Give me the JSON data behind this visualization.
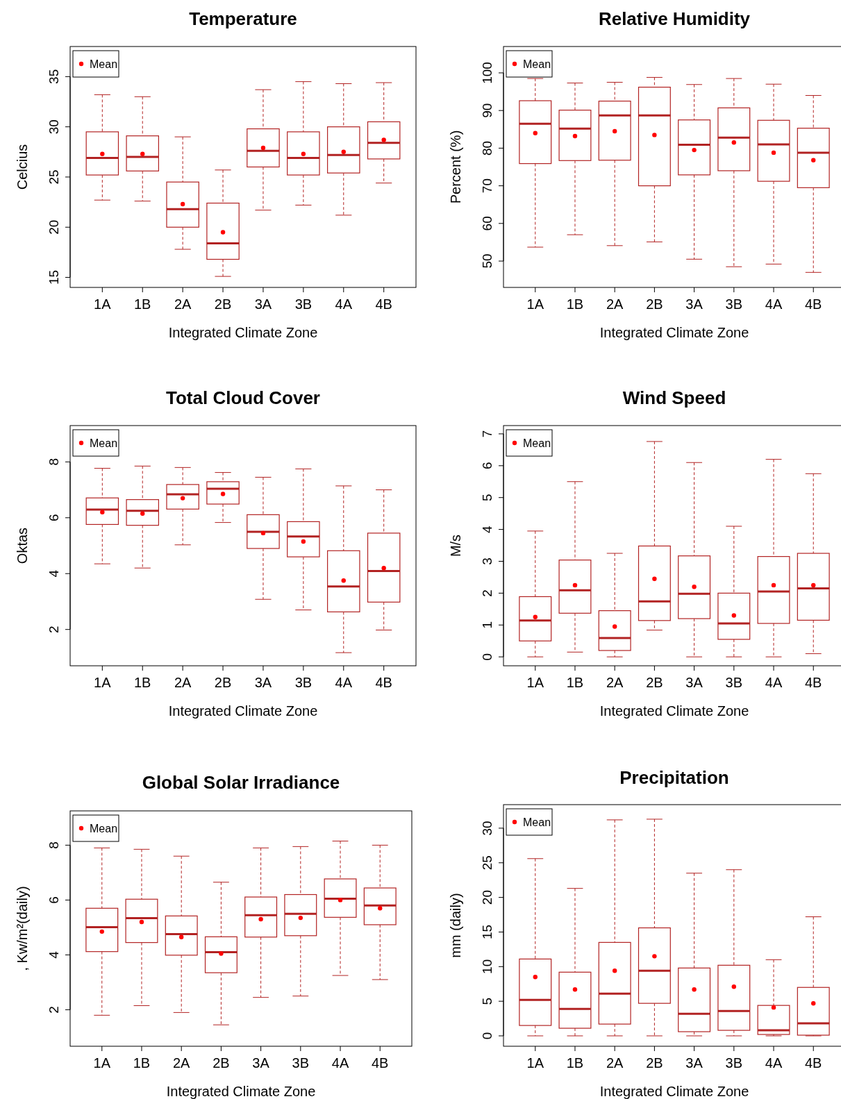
{
  "chart_data": [
    {
      "type": "box",
      "title": "Temperature",
      "xlabel": "Integrated Climate Zone",
      "ylabel": "Celcius",
      "categories": [
        "1A",
        "1B",
        "2A",
        "2B",
        "3A",
        "3B",
        "4A",
        "4B"
      ],
      "ylim": [
        14,
        38
      ],
      "yticks": [
        15,
        20,
        25,
        30,
        35
      ],
      "legend": "top left",
      "marker": "circle",
      "series": [
        {
          "type": "box",
          "color": "#b22222",
          "boxes": [
            {
              "low": 22.7,
              "q1": 25.2,
              "median": 26.9,
              "q3": 29.5,
              "high": 33.2
            },
            {
              "low": 22.6,
              "q1": 25.6,
              "median": 27.0,
              "q3": 29.1,
              "high": 33.0
            },
            {
              "low": 17.8,
              "q1": 20.0,
              "median": 21.8,
              "q3": 24.5,
              "high": 29.0
            },
            {
              "low": 15.1,
              "q1": 16.8,
              "median": 18.4,
              "q3": 22.4,
              "high": 25.7
            },
            {
              "low": 21.7,
              "q1": 26.0,
              "median": 27.6,
              "q3": 29.8,
              "high": 33.7
            },
            {
              "low": 22.2,
              "q1": 25.2,
              "median": 26.9,
              "q3": 29.5,
              "high": 34.5
            },
            {
              "low": 21.2,
              "q1": 25.4,
              "median": 27.2,
              "q3": 30.0,
              "high": 34.3
            },
            {
              "low": 24.4,
              "q1": 26.8,
              "median": 28.4,
              "q3": 30.5,
              "high": 34.4
            }
          ]
        },
        {
          "type": "scatter",
          "name": "Mean",
          "color": "#ff0000",
          "x": [
            "1A",
            "1B",
            "2A",
            "2B",
            "3A",
            "3B",
            "4A",
            "4B"
          ],
          "values": [
            27.3,
            27.3,
            22.3,
            19.5,
            27.9,
            27.3,
            27.5,
            28.7
          ]
        }
      ]
    },
    {
      "type": "box",
      "title": "Relative Humidity",
      "xlabel": "Integrated Climate Zone",
      "ylabel": "Percent (%)",
      "categories": [
        "1A",
        "1B",
        "2A",
        "2B",
        "3A",
        "3B",
        "4A",
        "4B"
      ],
      "ylim": [
        43,
        107
      ],
      "yticks": [
        50,
        60,
        70,
        80,
        90,
        100
      ],
      "legend": "top left",
      "marker": "circle",
      "series": [
        {
          "type": "box",
          "color": "#b22222",
          "boxes": [
            {
              "low": 53.7,
              "q1": 75.9,
              "median": 86.5,
              "q3": 92.6,
              "high": 98.5
            },
            {
              "low": 57,
              "q1": 76.7,
              "median": 85.2,
              "q3": 90.1,
              "high": 97.3
            },
            {
              "low": 54.1,
              "q1": 76.8,
              "median": 88.7,
              "q3": 92.5,
              "high": 97.5
            },
            {
              "low": 55.1,
              "q1": 70,
              "median": 88.7,
              "q3": 96.2,
              "high": 98.8
            },
            {
              "low": 50.5,
              "q1": 72.9,
              "median": 80.9,
              "q3": 87.5,
              "high": 96.9
            },
            {
              "low": 48.5,
              "q1": 74,
              "median": 82.8,
              "q3": 90.7,
              "high": 98.5
            },
            {
              "low": 49.2,
              "q1": 71.2,
              "median": 81,
              "q3": 87.4,
              "high": 97
            },
            {
              "low": 47,
              "q1": 69.5,
              "median": 78.8,
              "q3": 85.3,
              "high": 94
            }
          ]
        },
        {
          "type": "scatter",
          "name": "Mean",
          "color": "#ff0000",
          "x": [
            "1A",
            "1B",
            "2A",
            "2B",
            "3A",
            "3B",
            "4A",
            "4B"
          ],
          "values": [
            84,
            83.2,
            84.5,
            83.5,
            79.5,
            81.5,
            78.8,
            76.8
          ]
        }
      ]
    },
    {
      "type": "box",
      "title": "Total Cloud Cover",
      "xlabel": "Integrated Climate Zone",
      "ylabel": "Oktas",
      "categories": [
        "1A",
        "1B",
        "2A",
        "2B",
        "3A",
        "3B",
        "4A",
        "4B"
      ],
      "ylim": [
        0.7,
        9.3
      ],
      "yticks": [
        2,
        4,
        6,
        8
      ],
      "legend": "top left",
      "marker": "circle",
      "series": [
        {
          "type": "box",
          "color": "#b22222",
          "boxes": [
            {
              "low": 4.35,
              "q1": 5.76,
              "median": 6.29,
              "q3": 6.71,
              "high": 7.77
            },
            {
              "low": 4.2,
              "q1": 5.73,
              "median": 6.25,
              "q3": 6.65,
              "high": 7.85
            },
            {
              "low": 5.03,
              "q1": 6.31,
              "median": 6.84,
              "q3": 7.19,
              "high": 7.8
            },
            {
              "low": 5.83,
              "q1": 6.49,
              "median": 7.04,
              "q3": 7.29,
              "high": 7.62
            },
            {
              "low": 3.08,
              "q1": 4.9,
              "median": 5.5,
              "q3": 6.11,
              "high": 7.45
            },
            {
              "low": 2.7,
              "q1": 4.6,
              "median": 5.33,
              "q3": 5.86,
              "high": 7.75
            },
            {
              "low": 1.17,
              "q1": 2.63,
              "median": 3.54,
              "q3": 4.82,
              "high": 7.14
            },
            {
              "low": 1.98,
              "q1": 2.98,
              "median": 4.09,
              "q3": 5.45,
              "high": 7.0
            }
          ]
        },
        {
          "type": "scatter",
          "name": "Mean",
          "color": "#ff0000",
          "x": [
            "1A",
            "1B",
            "2A",
            "2B",
            "3A",
            "3B",
            "4A",
            "4B"
          ],
          "values": [
            6.2,
            6.15,
            6.7,
            6.85,
            5.45,
            5.15,
            3.75,
            4.2
          ]
        }
      ]
    },
    {
      "type": "box",
      "title": "Wind Speed",
      "xlabel": "Integrated Climate Zone",
      "ylabel": "M/s",
      "categories": [
        "1A",
        "1B",
        "2A",
        "2B",
        "3A",
        "3B",
        "4A",
        "4B"
      ],
      "ylim": [
        -0.28,
        7.26
      ],
      "yticks": [
        0,
        1,
        2,
        3,
        4,
        5,
        6,
        7
      ],
      "legend": "top left",
      "marker": "circle",
      "series": [
        {
          "type": "box",
          "color": "#b22222",
          "boxes": [
            {
              "low": 0,
              "q1": 0.5,
              "median": 1.14,
              "q3": 1.89,
              "high": 3.95
            },
            {
              "low": 0.15,
              "q1": 1.37,
              "median": 2.09,
              "q3": 3.04,
              "high": 5.5
            },
            {
              "low": 0,
              "q1": 0.2,
              "median": 0.59,
              "q3": 1.45,
              "high": 3.25
            },
            {
              "low": 0.84,
              "q1": 1.14,
              "median": 1.74,
              "q3": 3.48,
              "high": 6.76
            },
            {
              "low": 0,
              "q1": 1.2,
              "median": 1.98,
              "q3": 3.17,
              "high": 6.1
            },
            {
              "low": 0,
              "q1": 0.55,
              "median": 1.05,
              "q3": 2.0,
              "high": 4.1
            },
            {
              "low": 0,
              "q1": 1.05,
              "median": 2.05,
              "q3": 3.15,
              "high": 6.2
            },
            {
              "low": 0.1,
              "q1": 1.15,
              "median": 2.15,
              "q3": 3.25,
              "high": 5.75
            }
          ]
        },
        {
          "type": "scatter",
          "name": "Mean",
          "color": "#ff0000",
          "x": [
            "1A",
            "1B",
            "2A",
            "2B",
            "3A",
            "3B",
            "4A",
            "4B"
          ],
          "values": [
            1.25,
            2.25,
            0.95,
            2.45,
            2.2,
            1.3,
            2.25,
            2.25
          ]
        }
      ]
    },
    {
      "type": "box",
      "title": "Global Solar Irradiance",
      "xlabel": "Integrated Climate Zone",
      "ylabel": ", Kw/m²(daily)",
      "categories": [
        "1A",
        "1B",
        "2A",
        "2B",
        "3A",
        "3B",
        "4A",
        "4B"
      ],
      "ylim": [
        0.67,
        9.25
      ],
      "yticks": [
        2,
        4,
        6,
        8
      ],
      "legend": "top left",
      "marker": "circle",
      "series": [
        {
          "type": "box",
          "color": "#b22222",
          "boxes": [
            {
              "low": 1.8,
              "q1": 4.12,
              "median": 5.01,
              "q3": 5.7,
              "high": 7.9
            },
            {
              "low": 2.15,
              "q1": 4.45,
              "median": 5.34,
              "q3": 6.03,
              "high": 7.85
            },
            {
              "low": 1.9,
              "q1": 3.99,
              "median": 4.76,
              "q3": 5.42,
              "high": 7.6
            },
            {
              "low": 1.45,
              "q1": 3.35,
              "median": 4.1,
              "q3": 4.66,
              "high": 6.65
            },
            {
              "low": 2.45,
              "q1": 4.65,
              "median": 5.45,
              "q3": 6.11,
              "high": 7.9
            },
            {
              "low": 2.5,
              "q1": 4.7,
              "median": 5.5,
              "q3": 6.2,
              "high": 7.95
            },
            {
              "low": 3.25,
              "q1": 5.37,
              "median": 6.05,
              "q3": 6.77,
              "high": 8.15
            },
            {
              "low": 3.1,
              "q1": 5.1,
              "median": 5.8,
              "q3": 6.44,
              "high": 8.0
            }
          ]
        },
        {
          "type": "scatter",
          "name": "Mean",
          "color": "#ff0000",
          "x": [
            "1A",
            "1B",
            "2A",
            "2B",
            "3A",
            "3B",
            "4A",
            "4B"
          ],
          "values": [
            4.85,
            5.2,
            4.65,
            4.05,
            5.3,
            5.35,
            6.0,
            5.7
          ]
        }
      ]
    },
    {
      "type": "box",
      "title": "Precipitation",
      "xlabel": "Integrated Climate Zone",
      "ylabel": "mm (daily)",
      "categories": [
        "1A",
        "1B",
        "2A",
        "2B",
        "3A",
        "3B",
        "4A",
        "4B"
      ],
      "ylim": [
        -1.5,
        33.4
      ],
      "yticks": [
        0,
        5,
        10,
        15,
        20,
        25,
        30
      ],
      "legend": "top left",
      "marker": "circle",
      "series": [
        {
          "type": "box",
          "color": "#b22222",
          "boxes": [
            {
              "low": 0,
              "q1": 1.5,
              "median": 5.2,
              "q3": 11.1,
              "high": 25.6
            },
            {
              "low": 0,
              "q1": 1.1,
              "median": 3.9,
              "q3": 9.2,
              "high": 21.3
            },
            {
              "low": 0,
              "q1": 1.7,
              "median": 6.1,
              "q3": 13.5,
              "high": 31.2
            },
            {
              "low": 0,
              "q1": 4.7,
              "median": 9.4,
              "q3": 15.6,
              "high": 31.3
            },
            {
              "low": 0,
              "q1": 0.6,
              "median": 3.2,
              "q3": 9.8,
              "high": 23.5
            },
            {
              "low": 0,
              "q1": 0.8,
              "median": 3.6,
              "q3": 10.2,
              "high": 24.0
            },
            {
              "low": 0,
              "q1": 0.2,
              "median": 0.8,
              "q3": 4.4,
              "high": 11.0
            },
            {
              "low": 0,
              "q1": 0.1,
              "median": 1.8,
              "q3": 7.0,
              "high": 17.2
            }
          ]
        },
        {
          "type": "scatter",
          "name": "Mean",
          "color": "#ff0000",
          "x": [
            "1A",
            "1B",
            "2A",
            "2B",
            "3A",
            "3B",
            "4A",
            "4B"
          ],
          "values": [
            8.5,
            6.7,
            9.4,
            11.5,
            6.7,
            7.1,
            4.1,
            4.7
          ]
        }
      ]
    }
  ]
}
